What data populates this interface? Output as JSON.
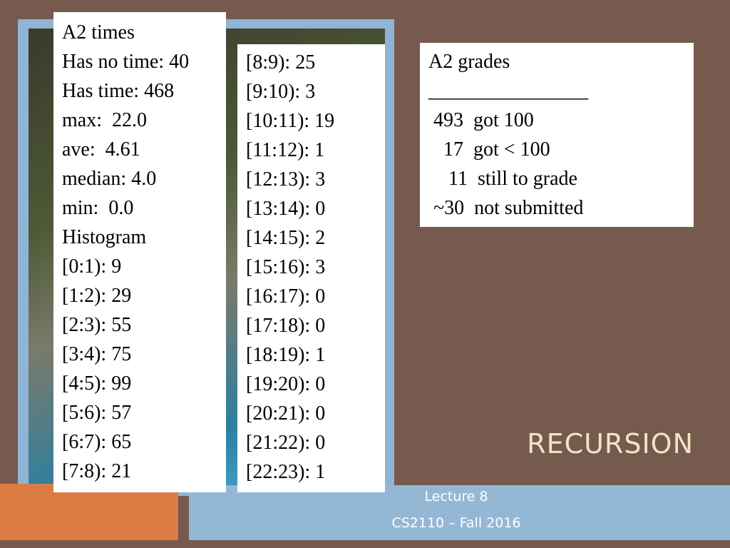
{
  "boxes": [
    {
      "lines": [
        "A2 times",
        "Has no time: 40",
        "Has time: 468",
        "max:  22.0",
        "ave:  4.61",
        "median: 4.0",
        "min:  0.0",
        "Histogram",
        "[0:1): 9",
        "[1:2): 29",
        "[2:3): 55",
        "[3:4): 75",
        "[4:5): 99",
        "[5:6): 57",
        "[6:7): 65",
        "[7:8): 21"
      ]
    },
    {
      "lines": [
        "[8:9): 25",
        "[9:10): 3",
        "[10:11): 19",
        "[11:12): 1",
        "[12:13): 3",
        "[13:14): 0",
        "[14:15): 2",
        "[15:16): 3",
        "[16:17): 0",
        "[17:18): 0",
        "[18:19): 1",
        "[19:20): 0",
        "[20:21): 0",
        "[21:22): 0",
        "[22:23): 1"
      ]
    },
    {
      "lines": [
        "A2 grades",
        "________________",
        " 493  got 100",
        "   17  got < 100",
        "    11  still to grade",
        " ~30  not submitted"
      ]
    }
  ],
  "title": "RECURSION",
  "footer": [
    "Lecture 8",
    "CS2110 – Fall 2016"
  ]
}
